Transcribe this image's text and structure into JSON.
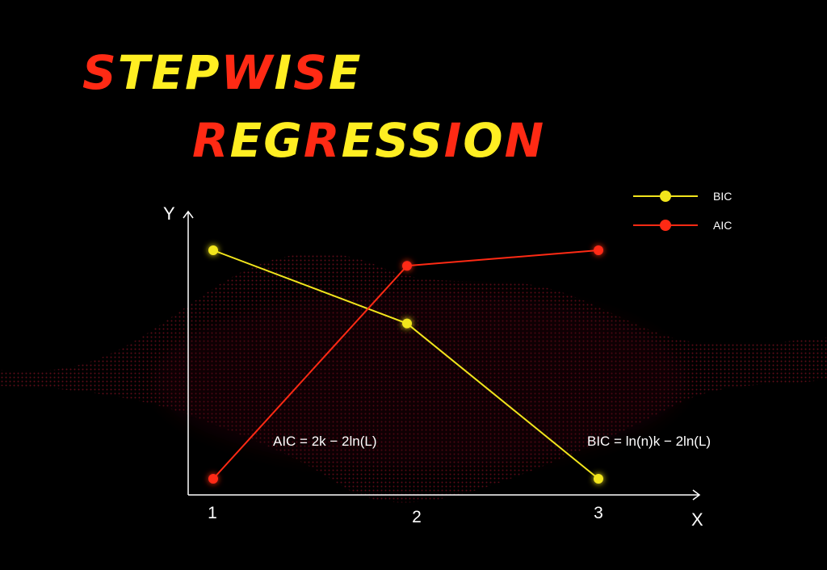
{
  "title": {
    "lines": [
      [
        {
          "text": "S",
          "color": "#ff2a14"
        },
        {
          "text": "TEP",
          "color": "#ffee22"
        },
        {
          "text": "W",
          "color": "#ff2a14"
        },
        {
          "text": "I",
          "color": "#ffee22"
        },
        {
          "text": "S",
          "color": "#ff2a14"
        },
        {
          "text": "E",
          "color": "#ffee22"
        }
      ],
      [
        {
          "text": "R",
          "color": "#ff2a14"
        },
        {
          "text": "EG",
          "color": "#ffee22"
        },
        {
          "text": "R",
          "color": "#ff2a14"
        },
        {
          "text": "ESS",
          "color": "#ffee22"
        },
        {
          "text": "I",
          "color": "#ff2a14"
        },
        {
          "text": "O",
          "color": "#ffee22"
        },
        {
          "text": "N",
          "color": "#ff2a14"
        }
      ]
    ]
  },
  "chart_data": {
    "type": "line",
    "x": [
      1,
      2,
      3
    ],
    "xlabel": "X",
    "ylabel": "Y",
    "xticks": [
      "1",
      "2",
      "3"
    ],
    "grid": false,
    "legend_position": "top-right",
    "series": [
      {
        "name": "BIC",
        "color": "#f2e51c",
        "values": [
          0.9,
          0.57,
          -0.13
        ]
      },
      {
        "name": "AIC",
        "color": "#ff2a14",
        "values": [
          -0.13,
          0.83,
          0.9
        ]
      }
    ],
    "annotations": [
      {
        "text": "AIC = 2k − 2ln(L)"
      },
      {
        "text": "BIC = ln(n)k − 2ln(L)"
      }
    ],
    "colors": {
      "background": "#000000",
      "axis": "#ffffff",
      "text": "#ffffff"
    }
  }
}
